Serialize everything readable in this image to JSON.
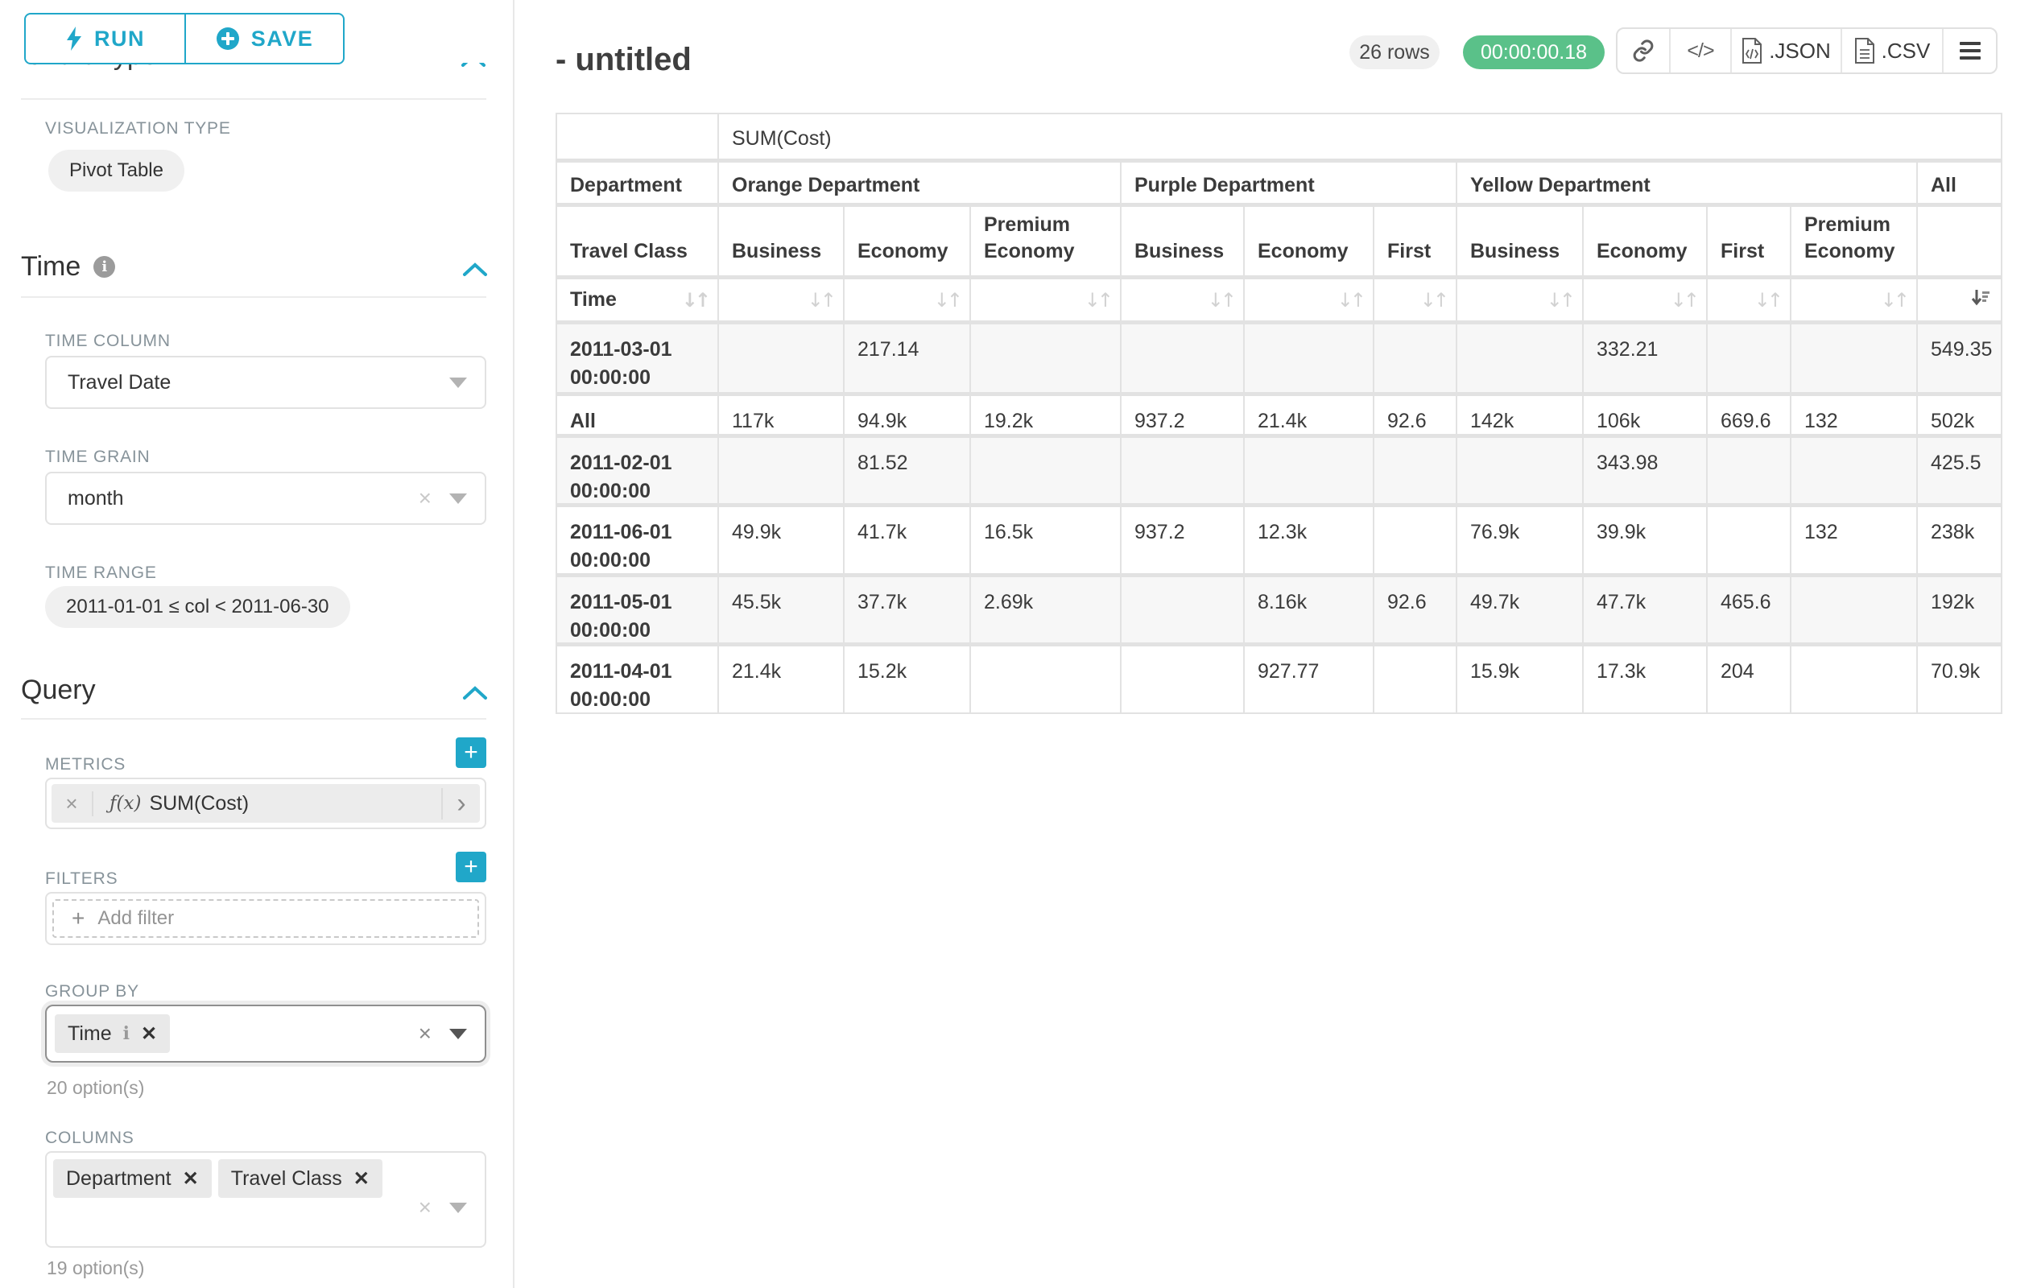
{
  "colors": {
    "accent": "#20a7c9",
    "timer_green": "#5ac189",
    "pill_gray": "#f0f0f0"
  },
  "panel": {
    "run_label": "RUN",
    "save_label": "SAVE",
    "chart_type_header": "Chart Type",
    "viz_type_label": "VISUALIZATION TYPE",
    "viz_type_value": "Pivot Table",
    "time_section": "Time",
    "time_column_label": "TIME COLUMN",
    "time_column_value": "Travel Date",
    "time_grain_label": "TIME GRAIN",
    "time_grain_value": "month",
    "time_range_label": "TIME RANGE",
    "time_range_value": "2011-01-01 ≤ col < 2011-06-30",
    "query_section": "Query",
    "metrics_label": "METRICS",
    "metric_fx": "ƒ(x)",
    "metric_value": "SUM(Cost)",
    "filters_label": "FILTERS",
    "add_filter_label": "Add filter",
    "group_by_label": "GROUP BY",
    "group_by_chip": "Time",
    "group_by_options": "20 option(s)",
    "columns_label": "COLUMNS",
    "columns_chips": [
      "Department",
      "Travel Class"
    ],
    "columns_options": "19 option(s)"
  },
  "header": {
    "title": "- untitled",
    "row_count": "26 rows",
    "timer": "00:00:00.18",
    "json_label": ".JSON",
    "csv_label": ".CSV"
  },
  "table": {
    "metric_header": "SUM(Cost)",
    "col_dim_label": "Department",
    "col_dim2_label": "Travel Class",
    "row_dim_label": "Time",
    "column_groups": [
      {
        "label": "Orange Department",
        "span": 3,
        "children": [
          "Business",
          "Economy",
          "Premium Economy"
        ]
      },
      {
        "label": "Purple Department",
        "span": 3,
        "children": [
          "Business",
          "Economy",
          "First"
        ]
      },
      {
        "label": "Yellow Department",
        "span": 4,
        "children": [
          "Business",
          "Economy",
          "First",
          "Premium Economy"
        ]
      },
      {
        "label": "All",
        "span": 1,
        "children": [
          ""
        ]
      }
    ],
    "rows": [
      {
        "label": "2011-03-01 00:00:00",
        "values": [
          "",
          "217.14",
          "",
          "",
          "",
          "",
          "",
          "332.21",
          "",
          "",
          "549.35"
        ]
      },
      {
        "label": "All",
        "values": [
          "117k",
          "94.9k",
          "19.2k",
          "937.2",
          "21.4k",
          "92.6",
          "142k",
          "106k",
          "669.6",
          "132",
          "502k"
        ]
      },
      {
        "label": "2011-02-01 00:00:00",
        "values": [
          "",
          "81.52",
          "",
          "",
          "",
          "",
          "",
          "343.98",
          "",
          "",
          "425.5"
        ]
      },
      {
        "label": "2011-06-01 00:00:00",
        "values": [
          "49.9k",
          "41.7k",
          "16.5k",
          "937.2",
          "12.3k",
          "",
          "76.9k",
          "39.9k",
          "",
          "132",
          "238k"
        ]
      },
      {
        "label": "2011-05-01 00:00:00",
        "values": [
          "45.5k",
          "37.7k",
          "2.69k",
          "",
          "8.16k",
          "92.6",
          "49.7k",
          "47.7k",
          "465.6",
          "",
          "192k"
        ]
      },
      {
        "label": "2011-04-01 00:00:00",
        "values": [
          "21.4k",
          "15.2k",
          "",
          "",
          "927.77",
          "",
          "15.9k",
          "17.3k",
          "204",
          "",
          "70.9k"
        ]
      }
    ]
  }
}
